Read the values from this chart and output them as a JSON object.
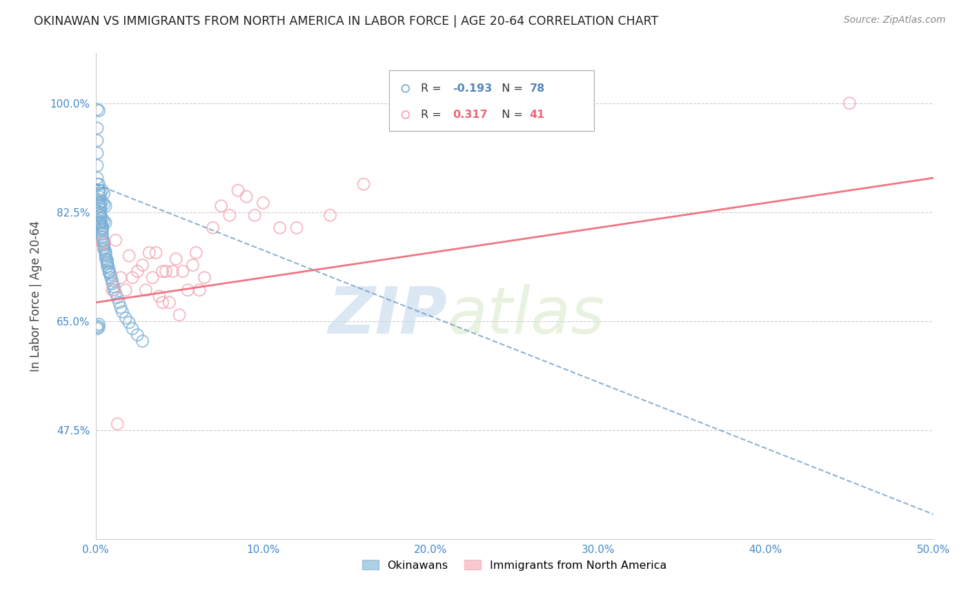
{
  "title": "OKINAWAN VS IMMIGRANTS FROM NORTH AMERICA IN LABOR FORCE | AGE 20-64 CORRELATION CHART",
  "source": "Source: ZipAtlas.com",
  "ylabel": "In Labor Force | Age 20-64",
  "xlim": [
    0.0,
    0.5
  ],
  "ylim": [
    0.3,
    1.08
  ],
  "xtick_labels": [
    "0.0%",
    "",
    "10.0%",
    "",
    "20.0%",
    "",
    "30.0%",
    "",
    "40.0%",
    "",
    "50.0%"
  ],
  "xtick_vals": [
    0.0,
    0.05,
    0.1,
    0.15,
    0.2,
    0.25,
    0.3,
    0.35,
    0.4,
    0.45,
    0.5
  ],
  "ytick_labels": [
    "47.5%",
    "65.0%",
    "82.5%",
    "100.0%"
  ],
  "ytick_vals": [
    0.475,
    0.65,
    0.825,
    1.0
  ],
  "legend_R_blue": "-0.193",
  "legend_N_blue": "78",
  "legend_R_pink": "0.317",
  "legend_N_pink": "41",
  "blue_color": "#7BAFD4",
  "pink_color": "#F4A5B0",
  "blue_line_color": "#5588BB",
  "pink_line_color": "#EE6677",
  "watermark_zip": "ZIP",
  "watermark_atlas": "atlas",
  "blue_scatter_x": [
    0.001,
    0.001,
    0.001,
    0.001,
    0.001,
    0.001,
    0.002,
    0.002,
    0.002,
    0.002,
    0.002,
    0.002,
    0.002,
    0.003,
    0.003,
    0.003,
    0.003,
    0.003,
    0.003,
    0.003,
    0.003,
    0.004,
    0.004,
    0.004,
    0.004,
    0.004,
    0.004,
    0.004,
    0.005,
    0.005,
    0.005,
    0.005,
    0.005,
    0.006,
    0.006,
    0.006,
    0.006,
    0.007,
    0.007,
    0.007,
    0.007,
    0.008,
    0.008,
    0.008,
    0.009,
    0.009,
    0.01,
    0.01,
    0.011,
    0.011,
    0.012,
    0.013,
    0.014,
    0.015,
    0.016,
    0.018,
    0.02,
    0.022,
    0.025,
    0.028,
    0.002,
    0.003,
    0.003,
    0.004,
    0.004,
    0.005,
    0.005,
    0.006,
    0.003,
    0.004,
    0.005,
    0.006,
    0.002,
    0.001,
    0.002,
    0.001,
    0.001,
    0.002
  ],
  "blue_scatter_y": [
    0.96,
    0.94,
    0.92,
    0.9,
    0.88,
    0.87,
    0.87,
    0.86,
    0.855,
    0.85,
    0.845,
    0.84,
    0.835,
    0.835,
    0.83,
    0.825,
    0.82,
    0.815,
    0.81,
    0.808,
    0.805,
    0.803,
    0.8,
    0.798,
    0.795,
    0.79,
    0.785,
    0.78,
    0.778,
    0.775,
    0.772,
    0.768,
    0.765,
    0.762,
    0.758,
    0.755,
    0.75,
    0.748,
    0.745,
    0.742,
    0.738,
    0.735,
    0.73,
    0.728,
    0.725,
    0.72,
    0.715,
    0.71,
    0.705,
    0.7,
    0.695,
    0.688,
    0.68,
    0.672,
    0.665,
    0.655,
    0.648,
    0.638,
    0.628,
    0.618,
    0.808,
    0.855,
    0.82,
    0.86,
    0.815,
    0.855,
    0.81,
    0.808,
    0.84,
    0.842,
    0.838,
    0.835,
    0.645,
    0.642,
    0.64,
    0.638,
    0.99,
    0.988
  ],
  "pink_scatter_x": [
    0.004,
    0.01,
    0.012,
    0.015,
    0.018,
    0.02,
    0.022,
    0.025,
    0.028,
    0.03,
    0.032,
    0.034,
    0.036,
    0.038,
    0.04,
    0.04,
    0.042,
    0.044,
    0.046,
    0.048,
    0.05,
    0.052,
    0.055,
    0.058,
    0.06,
    0.062,
    0.065,
    0.07,
    0.075,
    0.08,
    0.085,
    0.09,
    0.095,
    0.1,
    0.11,
    0.12,
    0.14,
    0.16,
    0.19,
    0.45,
    0.013
  ],
  "pink_scatter_y": [
    0.775,
    0.7,
    0.78,
    0.72,
    0.7,
    0.755,
    0.72,
    0.73,
    0.74,
    0.7,
    0.76,
    0.72,
    0.76,
    0.69,
    0.73,
    0.68,
    0.73,
    0.68,
    0.73,
    0.75,
    0.66,
    0.73,
    0.7,
    0.74,
    0.76,
    0.7,
    0.72,
    0.8,
    0.835,
    0.82,
    0.86,
    0.85,
    0.82,
    0.84,
    0.8,
    0.8,
    0.82,
    0.87,
    1.0,
    1.0,
    0.485
  ],
  "blue_trend_x0": 0.0,
  "blue_trend_x1": 0.5,
  "blue_trend_y0": 0.87,
  "blue_trend_y1": 0.34,
  "pink_trend_x0": 0.0,
  "pink_trend_x1": 0.5,
  "pink_trend_y0": 0.68,
  "pink_trend_y1": 0.88
}
